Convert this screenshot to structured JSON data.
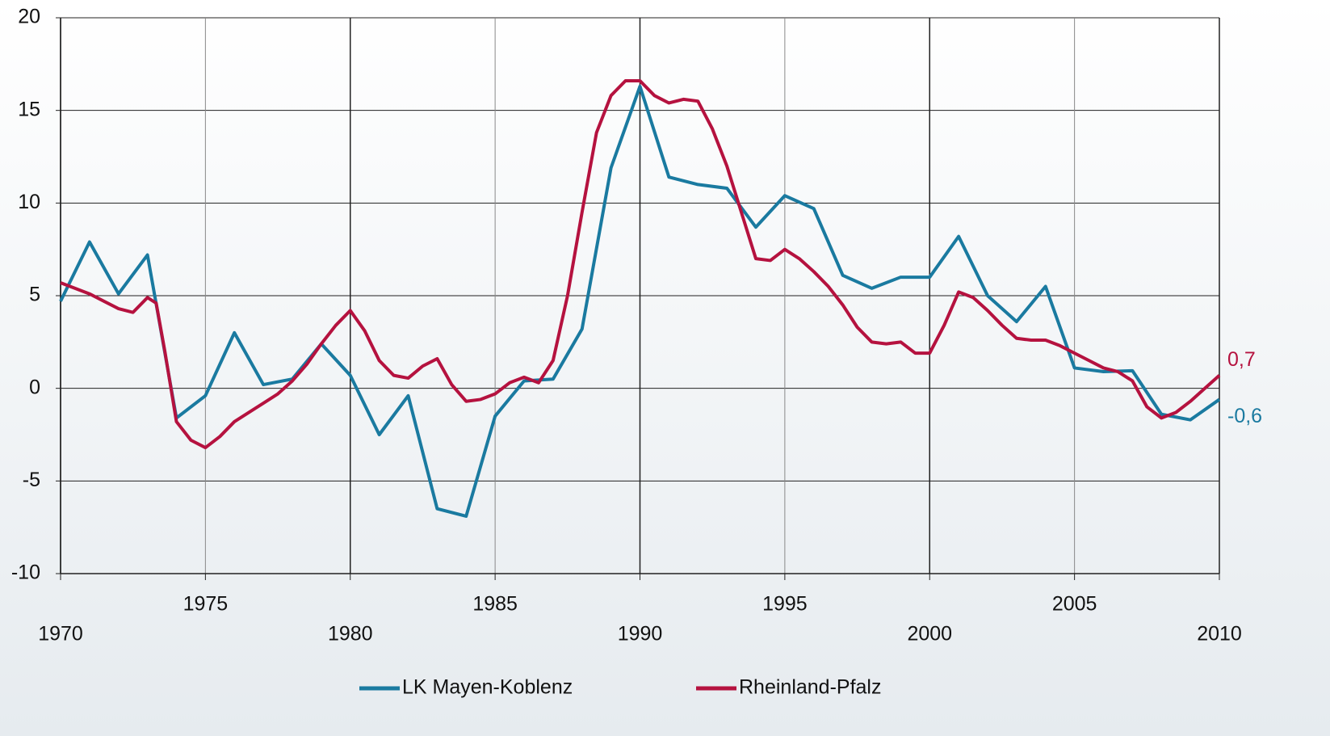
{
  "chart_data": {
    "type": "line",
    "xlim": [
      1970,
      2010
    ],
    "xticks": [
      1970,
      1975,
      1980,
      1985,
      1990,
      1995,
      2000,
      2005,
      2010
    ],
    "ylim": [
      -10,
      20
    ],
    "yticks": [
      -10,
      -5,
      0,
      5,
      10,
      15,
      20
    ],
    "grid": true,
    "legend": "bottom",
    "series": [
      {
        "name": "LK Mayen-Koblenz",
        "color": "#1a7aa0",
        "x": [
          1970,
          1971,
          1972,
          1973,
          1974,
          1975,
          1976,
          1977,
          1978,
          1979,
          1980,
          1981,
          1982,
          1983,
          1984,
          1985,
          1986,
          1987,
          1988,
          1989,
          1990,
          1991,
          1992,
          1993,
          1994,
          1995,
          1996,
          1997,
          1998,
          1999,
          2000,
          2001,
          2002,
          2003,
          2004,
          2005,
          2006,
          2007,
          2008,
          2009,
          2010
        ],
        "values": [
          4.7,
          7.9,
          5.1,
          7.2,
          -1.6,
          -0.4,
          3.0,
          0.2,
          0.5,
          2.4,
          0.7,
          -2.5,
          -0.4,
          -6.5,
          -6.9,
          -1.5,
          0.4,
          0.5,
          3.2,
          11.9,
          16.3,
          11.4,
          11.0,
          10.8,
          8.7,
          10.4,
          9.7,
          6.1,
          5.4,
          6.0,
          6.0,
          8.2,
          5.0,
          3.6,
          5.5,
          1.1,
          0.9,
          0.95,
          -1.4,
          -1.7,
          -0.6
        ],
        "value_labels": [
          null,
          null,
          null,
          null,
          null,
          null,
          null,
          null,
          null,
          null,
          null,
          null,
          null,
          null,
          null,
          null,
          null,
          null,
          null,
          null,
          null,
          null,
          null,
          null,
          null,
          null,
          null,
          null,
          null,
          null,
          null,
          null,
          null,
          null,
          null,
          null,
          null,
          null,
          null,
          null,
          "-0,6"
        ]
      },
      {
        "name": "Rheinland-Pfalz",
        "color": "#b5123f",
        "x": [
          1970,
          1971,
          1972,
          1972.5,
          1973,
          1973.3,
          1973.6,
          1974,
          1974.5,
          1975,
          1975.5,
          1976,
          1977,
          1977.5,
          1978,
          1978.5,
          1979,
          1979.5,
          1980,
          1980.5,
          1981,
          1981.5,
          1982,
          1982.5,
          1983,
          1983.5,
          1984,
          1984.5,
          1985,
          1985.5,
          1986,
          1986.5,
          1987,
          1987.5,
          1988,
          1988.5,
          1989,
          1989.5,
          1990,
          1990.5,
          1991,
          1991.5,
          1992,
          1992.5,
          1993,
          1993.5,
          1994,
          1994.5,
          1995,
          1995.5,
          1996,
          1996.5,
          1997,
          1997.5,
          1998,
          1998.5,
          1999,
          1999.5,
          2000,
          2000.5,
          2001,
          2001.5,
          2002,
          2002.5,
          2003,
          2003.5,
          2004,
          2004.5,
          2005,
          2005.5,
          2006,
          2006.5,
          2007,
          2007.5,
          2008,
          2008.5,
          2009,
          2009.5,
          2010
        ],
        "values": [
          5.7,
          5.1,
          4.3,
          4.1,
          4.9,
          4.6,
          2.0,
          -1.8,
          -2.8,
          -3.2,
          -2.6,
          -1.8,
          -0.8,
          -0.3,
          0.4,
          1.3,
          2.4,
          3.4,
          4.2,
          3.1,
          1.5,
          0.7,
          0.55,
          1.2,
          1.6,
          0.2,
          -0.7,
          -0.6,
          -0.3,
          0.3,
          0.6,
          0.3,
          1.5,
          5.0,
          9.5,
          13.8,
          15.8,
          16.6,
          16.6,
          15.8,
          15.4,
          15.6,
          15.5,
          14.0,
          12.0,
          9.5,
          7.0,
          6.9,
          7.5,
          7.0,
          6.3,
          5.5,
          4.5,
          3.3,
          2.5,
          2.4,
          2.5,
          1.9,
          1.9,
          3.4,
          5.2,
          4.9,
          4.2,
          3.4,
          2.7,
          2.6,
          2.6,
          2.3,
          1.9,
          1.5,
          1.1,
          0.9,
          0.4,
          -1.0,
          -1.6,
          -1.3,
          -0.7,
          0.0,
          0.7
        ],
        "value_labels": [
          null,
          null,
          null,
          null,
          null,
          null,
          null,
          null,
          null,
          null,
          null,
          null,
          null,
          null,
          null,
          null,
          null,
          null,
          null,
          null,
          null,
          null,
          null,
          null,
          null,
          null,
          null,
          null,
          null,
          null,
          null,
          null,
          null,
          null,
          null,
          null,
          null,
          null,
          null,
          null,
          null,
          null,
          null,
          null,
          null,
          null,
          null,
          null,
          null,
          null,
          null,
          null,
          null,
          null,
          null,
          null,
          null,
          null,
          null,
          null,
          null,
          null,
          null,
          null,
          null,
          null,
          null,
          null,
          null,
          null,
          null,
          null,
          null,
          null,
          null,
          null,
          null,
          null,
          "0,7"
        ]
      }
    ]
  }
}
